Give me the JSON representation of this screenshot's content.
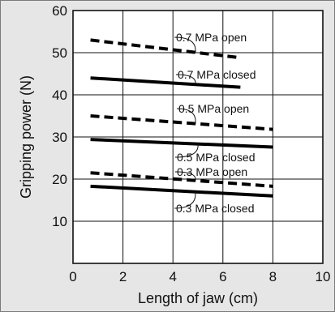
{
  "chart_data": {
    "type": "line",
    "xlabel": "Length of jaw (cm)",
    "ylabel": "Gripping power (N)",
    "xlim": [
      0,
      10
    ],
    "ylim": [
      0,
      60
    ],
    "x_ticks": [
      "0",
      "2",
      "4",
      "6",
      "8",
      "10"
    ],
    "y_ticks": [
      "10",
      "20",
      "30",
      "40",
      "50",
      "60"
    ],
    "grid": true,
    "series": [
      {
        "name": "0.7 MPa open",
        "style": "dashed",
        "x": [
          0.7,
          6.7
        ],
        "y": [
          53.0,
          48.8
        ]
      },
      {
        "name": "0.7 MPa closed",
        "style": "solid",
        "x": [
          0.7,
          6.7
        ],
        "y": [
          44.0,
          41.8
        ]
      },
      {
        "name": "0.5 MPa open",
        "style": "dashed",
        "x": [
          0.7,
          8.0
        ],
        "y": [
          35.0,
          31.8
        ]
      },
      {
        "name": "0.5 MPa closed",
        "style": "solid",
        "x": [
          0.7,
          8.0
        ],
        "y": [
          29.4,
          27.6
        ]
      },
      {
        "name": "0.3 MPa open",
        "style": "dashed",
        "x": [
          0.7,
          8.0
        ],
        "y": [
          21.5,
          18.3
        ]
      },
      {
        "name": "0.3 MPa closed",
        "style": "solid",
        "x": [
          0.7,
          8.0
        ],
        "y": [
          18.3,
          16.0
        ]
      }
    ]
  }
}
